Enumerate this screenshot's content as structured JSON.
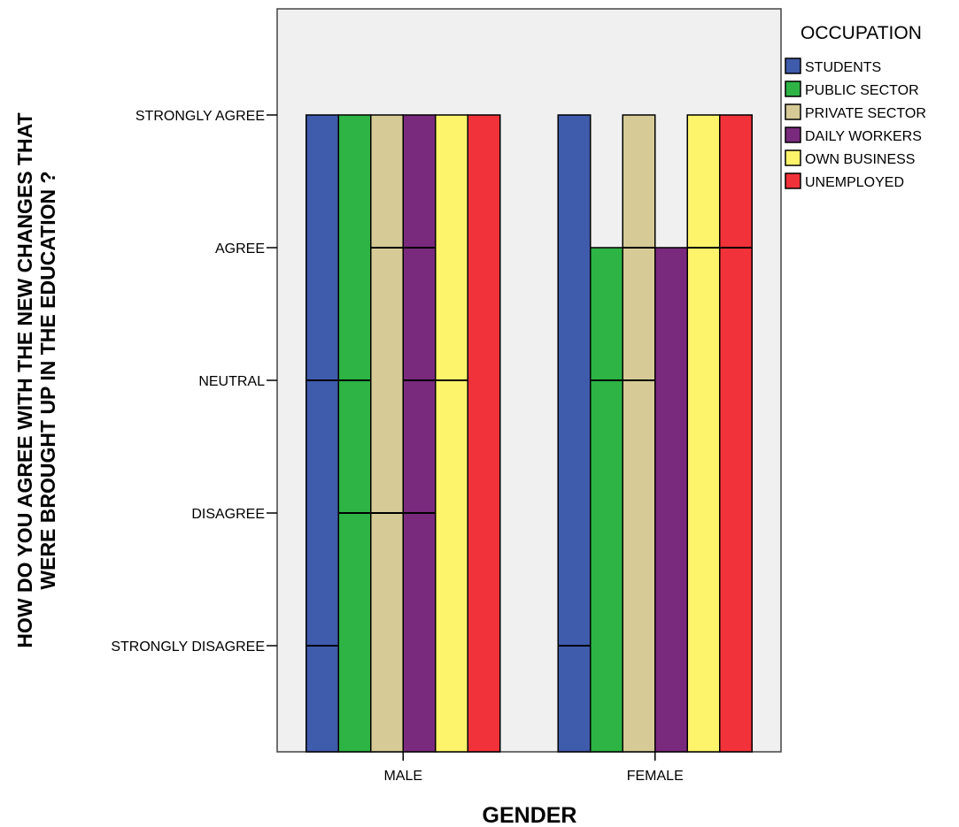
{
  "chart_data": {
    "type": "bar",
    "title": "",
    "xlabel": "GENDER",
    "ylabel_lines": [
      "HOW DO YOU AGREE WITH THE NEW CHANGES THAT",
      "WERE BROUGHT UP IN THE EDUCATION ?"
    ],
    "y_categories": [
      "STRONGLY DISAGREE",
      "DISAGREE",
      "NEUTRAL",
      "AGREE",
      "STRONGLY AGREE"
    ],
    "ylim": [
      0.2,
      5.8
    ],
    "categories": [
      "MALE",
      "FEMALE"
    ],
    "legend": {
      "title": "OCCUPATION",
      "position": "right"
    },
    "grid": false,
    "series": [
      {
        "name": "STUDENTS",
        "color": "#3f5bab",
        "values": [
          5,
          5
        ],
        "segment_lines": [
          [
            1,
            3
          ],
          [
            1
          ]
        ]
      },
      {
        "name": "PUBLIC SECTOR",
        "color": "#2db444",
        "values": [
          5,
          4
        ],
        "segment_lines": [
          [
            2,
            3
          ],
          [
            3
          ]
        ]
      },
      {
        "name": "PRIVATE SECTOR",
        "color": "#d6cb96",
        "values": [
          5,
          5
        ],
        "segment_lines": [
          [
            2,
            4
          ],
          [
            3,
            4
          ]
        ]
      },
      {
        "name": "DAILY WORKERS",
        "color": "#7a2a7d",
        "values": [
          5,
          4
        ],
        "segment_lines": [
          [
            2,
            3,
            4
          ],
          []
        ]
      },
      {
        "name": "OWN BUSINESS",
        "color": "#fdf46b",
        "values": [
          5,
          5
        ],
        "segment_lines": [
          [
            3
          ],
          [
            4
          ]
        ]
      },
      {
        "name": "UNEMPLOYED",
        "color": "#f2323a",
        "values": [
          5,
          5
        ],
        "segment_lines": [
          [],
          [
            4
          ]
        ]
      }
    ]
  }
}
